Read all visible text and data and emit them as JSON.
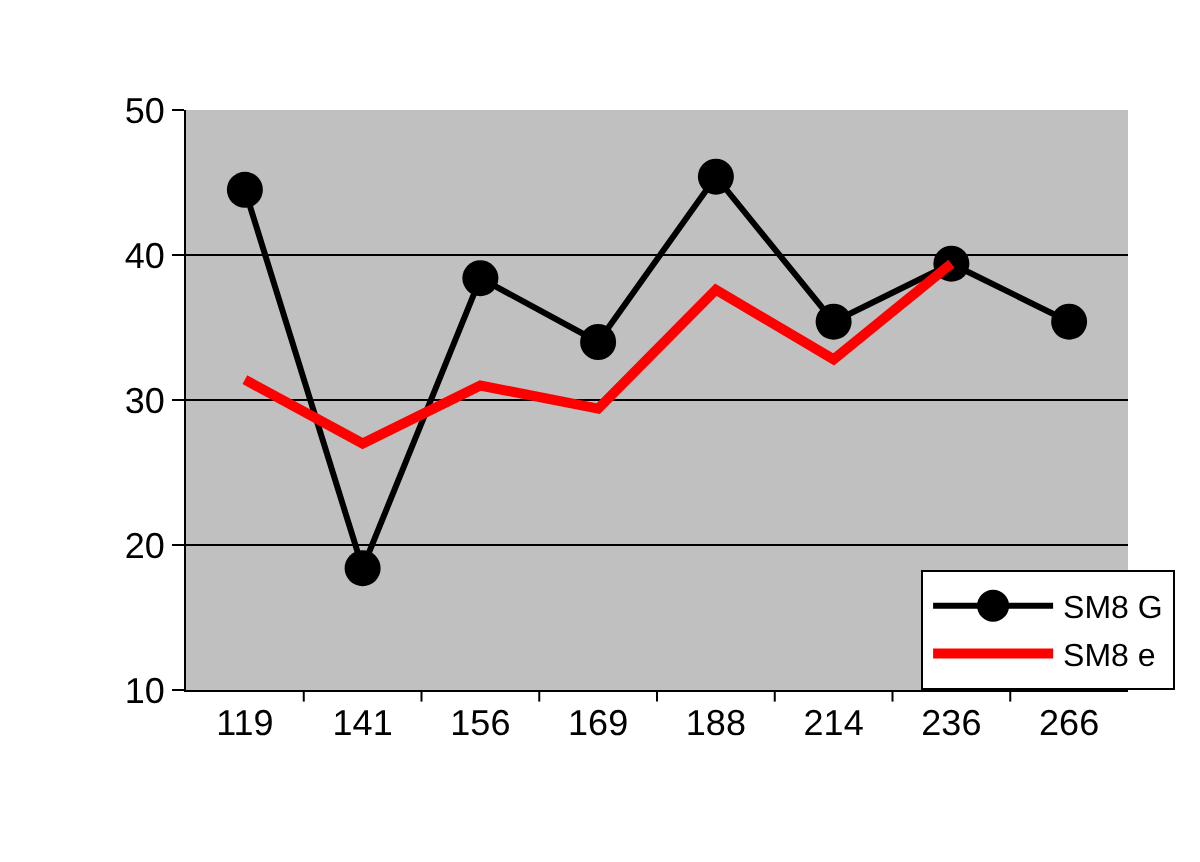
{
  "chart_data": {
    "type": "line",
    "categories": [
      "119",
      "141",
      "156",
      "169",
      "188",
      "214",
      "236",
      "266"
    ],
    "series": [
      {
        "name": "SM8 G",
        "color": "#000000",
        "marker": "circle",
        "values": [
          44.5,
          18.4,
          38.4,
          34,
          45.4,
          35.4,
          39.4,
          35.4
        ]
      },
      {
        "name": "SM8 e",
        "color": "#ff0000",
        "marker": "none",
        "values": [
          31.4,
          27,
          31,
          29.4,
          37.6,
          32.8,
          39.4,
          null
        ]
      }
    ],
    "ylim": [
      10,
      50
    ],
    "yticks": [
      10,
      20,
      30,
      40,
      50
    ],
    "grid": "y",
    "legend": "bottom right"
  }
}
